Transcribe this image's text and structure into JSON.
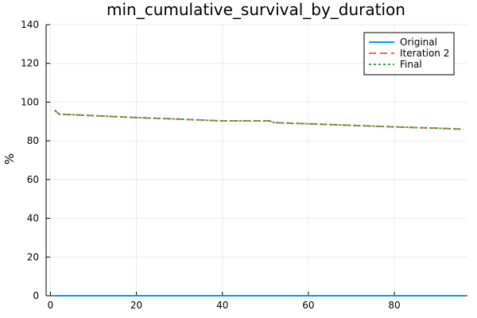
{
  "chart_data": {
    "type": "line",
    "title": "min_cumulative_survival_by_duration",
    "xlabel": "",
    "ylabel": "%",
    "xlim": [
      -1,
      97
    ],
    "ylim": [
      0,
      140
    ],
    "xticks": [
      0,
      20,
      40,
      60,
      80
    ],
    "yticks": [
      0,
      20,
      40,
      60,
      80,
      100,
      120,
      140
    ],
    "grid": true,
    "legend_position": "top-right",
    "series": [
      {
        "name": "Original",
        "color": "#009AFA",
        "style": "solid",
        "x": [
          1,
          96
        ],
        "y": [
          0,
          0
        ]
      },
      {
        "name": "Iteration 2",
        "color": "#E26F46",
        "style": "dashed",
        "x": [
          1,
          2,
          10,
          20,
          30,
          40,
          45,
          51,
          52,
          60,
          70,
          80,
          90,
          96
        ],
        "y": [
          95.8,
          93.8,
          93.0,
          92.0,
          91.2,
          90.3,
          90.3,
          90.3,
          89.4,
          88.8,
          88.0,
          87.2,
          86.5,
          86.0
        ]
      },
      {
        "name": "Final",
        "color": "#3DA44D",
        "style": "dotted",
        "x": [
          1,
          2,
          10,
          20,
          30,
          40,
          45,
          51,
          52,
          60,
          70,
          80,
          90,
          96
        ],
        "y": [
          95.8,
          93.8,
          93.0,
          92.0,
          91.2,
          90.3,
          90.3,
          90.3,
          89.4,
          88.8,
          88.0,
          87.2,
          86.5,
          86.0
        ]
      }
    ]
  }
}
